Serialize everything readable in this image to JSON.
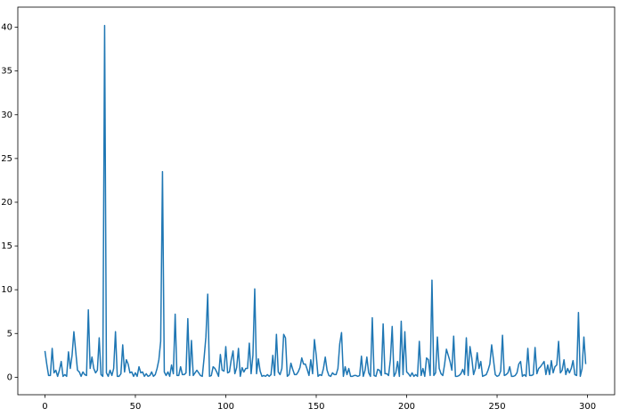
{
  "chart_data": {
    "type": "line",
    "color": "#1f77b4",
    "x": [
      0,
      1,
      2,
      3,
      4,
      5,
      6,
      7,
      8,
      9,
      10,
      11,
      12,
      13,
      14,
      15,
      16,
      17,
      18,
      19,
      20,
      21,
      22,
      23,
      24,
      25,
      26,
      27,
      28,
      29,
      30,
      31,
      32,
      33,
      34,
      35,
      36,
      37,
      38,
      39,
      40,
      41,
      42,
      43,
      44,
      45,
      46,
      47,
      48,
      49,
      50,
      51,
      52,
      53,
      54,
      55,
      56,
      57,
      58,
      59,
      60,
      61,
      62,
      63,
      64,
      65,
      66,
      67,
      68,
      69,
      70,
      71,
      72,
      73,
      74,
      75,
      76,
      77,
      78,
      79,
      80,
      81,
      82,
      83,
      84,
      85,
      86,
      87,
      88,
      89,
      90,
      91,
      92,
      93,
      94,
      95,
      96,
      97,
      98,
      99,
      100,
      101,
      102,
      103,
      104,
      105,
      106,
      107,
      108,
      109,
      110,
      111,
      112,
      113,
      114,
      115,
      116,
      117,
      118,
      119,
      120,
      121,
      122,
      123,
      124,
      125,
      126,
      127,
      128,
      129,
      130,
      131,
      132,
      133,
      134,
      135,
      136,
      137,
      138,
      139,
      140,
      141,
      142,
      143,
      144,
      145,
      146,
      147,
      148,
      149,
      150,
      151,
      152,
      153,
      154,
      155,
      156,
      157,
      158,
      159,
      160,
      161,
      162,
      163,
      164,
      165,
      166,
      167,
      168,
      169,
      170,
      171,
      172,
      173,
      174,
      175,
      176,
      177,
      178,
      179,
      180,
      181,
      182,
      183,
      184,
      185,
      186,
      187,
      188,
      189,
      190,
      191,
      192,
      193,
      194,
      195,
      196,
      197,
      198,
      199,
      200,
      201,
      202,
      203,
      204,
      205,
      206,
      207,
      208,
      209,
      210,
      211,
      212,
      213,
      214,
      215,
      216,
      217,
      218,
      219,
      220,
      221,
      222,
      223,
      224,
      225,
      226,
      227,
      228,
      229,
      230,
      231,
      232,
      233,
      234,
      235,
      236,
      237,
      238,
      239,
      240,
      241,
      242,
      243,
      244,
      245,
      246,
      247,
      248,
      249,
      250,
      251,
      252,
      253,
      254,
      255,
      256,
      257,
      258,
      259,
      260,
      261,
      262,
      263,
      264,
      265,
      266,
      267,
      268,
      269,
      270,
      271,
      272,
      273,
      274,
      275,
      276,
      277,
      278,
      279,
      280,
      281,
      282,
      283,
      284,
      285,
      286,
      287,
      288,
      289,
      290,
      291,
      292,
      293,
      294,
      295,
      296,
      297,
      298,
      299
    ],
    "values": [
      3.0,
      1.5,
      0.2,
      0.2,
      3.3,
      0.5,
      0.8,
      0.1,
      0.8,
      1.8,
      0.1,
      0.3,
      0.1,
      2.9,
      1.0,
      2.5,
      5.2,
      3.0,
      0.8,
      0.6,
      0.1,
      0.6,
      0.3,
      0.2,
      7.7,
      1.0,
      2.3,
      1.0,
      0.5,
      0.8,
      4.5,
      0.3,
      0.1,
      40.2,
      0.5,
      0.1,
      0.8,
      0.2,
      1.0,
      5.2,
      0.1,
      0.1,
      0.4,
      3.7,
      0.6,
      2.0,
      1.5,
      0.5,
      0.6,
      0.1,
      0.5,
      0.1,
      1.2,
      0.5,
      0.6,
      0.1,
      0.4,
      0.1,
      0.2,
      0.6,
      0.1,
      0.3,
      1.0,
      2.0,
      4.1,
      23.5,
      0.6,
      0.2,
      0.6,
      0.1,
      1.4,
      0.4,
      7.2,
      0.2,
      0.2,
      1.2,
      0.3,
      0.3,
      0.5,
      6.7,
      0.2,
      4.2,
      0.2,
      0.5,
      0.8,
      0.5,
      0.2,
      0.1,
      2.2,
      4.6,
      9.5,
      0.1,
      0.2,
      1.2,
      1.0,
      0.6,
      0.1,
      2.6,
      0.8,
      0.7,
      3.5,
      0.5,
      0.6,
      2.0,
      3.0,
      0.4,
      1.1,
      3.3,
      0.1,
      1.1,
      0.6,
      1.0,
      1.0,
      3.9,
      0.4,
      2.5,
      10.1,
      0.4,
      2.1,
      0.7,
      0.1,
      0.2,
      0.1,
      0.3,
      0.1,
      0.3,
      2.5,
      0.2,
      4.9,
      0.6,
      0.3,
      1.0,
      4.9,
      4.5,
      0.1,
      0.3,
      1.6,
      0.9,
      0.3,
      0.3,
      0.6,
      1.1,
      2.2,
      1.5,
      1.5,
      0.9,
      0.2,
      2.0,
      0.4,
      4.3,
      2.5,
      0.1,
      0.3,
      0.2,
      1.0,
      2.3,
      0.8,
      0.2,
      0.1,
      0.5,
      0.3,
      0.3,
      1.0,
      3.8,
      5.1,
      0.1,
      1.2,
      0.3,
      1.0,
      0.1,
      0.1,
      0.2,
      0.2,
      0.1,
      0.2,
      2.4,
      0.1,
      0.8,
      2.3,
      0.5,
      0.1,
      6.8,
      0.2,
      0.1,
      0.9,
      0.8,
      0.2,
      6.1,
      0.4,
      0.4,
      0.2,
      2.0,
      5.8,
      0.1,
      0.5,
      1.8,
      0.1,
      6.4,
      0.3,
      5.2,
      0.6,
      0.4,
      0.1,
      0.5,
      0.1,
      0.3,
      0.1,
      4.1,
      0.2,
      1.0,
      0.1,
      2.2,
      2.0,
      0.2,
      11.1,
      0.2,
      0.5,
      4.6,
      1.0,
      0.4,
      0.2,
      1.5,
      3.2,
      2.5,
      1.8,
      0.8,
      4.7,
      0.1,
      0.1,
      0.2,
      0.4,
      0.9,
      0.3,
      4.5,
      0.2,
      3.5,
      2.2,
      0.3,
      1.0,
      2.8,
      1.0,
      1.8,
      0.1,
      0.2,
      0.3,
      0.8,
      1.5,
      3.7,
      2.0,
      0.3,
      0.1,
      0.2,
      0.7,
      4.8,
      0.2,
      0.3,
      0.5,
      1.2,
      0.1,
      0.1,
      0.2,
      0.5,
      1.5,
      1.8,
      0.1,
      0.3,
      0.1,
      3.3,
      0.2,
      0.2,
      0.3,
      3.4,
      0.4,
      1.0,
      1.2,
      1.5,
      1.8,
      0.3,
      1.4,
      0.3,
      1.9,
      0.5,
      1.2,
      1.4,
      4.1,
      0.5,
      0.8,
      2.0,
      0.3,
      1.0,
      0.5,
      1.0,
      1.9,
      0.3,
      0.2,
      7.4,
      0.1,
      1.0,
      4.6,
      1.5
    ],
    "xlim": [
      -15,
      315
    ],
    "xticks": [
      0,
      50,
      100,
      150,
      200,
      250,
      300
    ],
    "ylim": [
      -2,
      42.3
    ],
    "yticks": [
      0,
      5,
      10,
      15,
      20,
      25,
      30,
      35,
      40
    ]
  }
}
